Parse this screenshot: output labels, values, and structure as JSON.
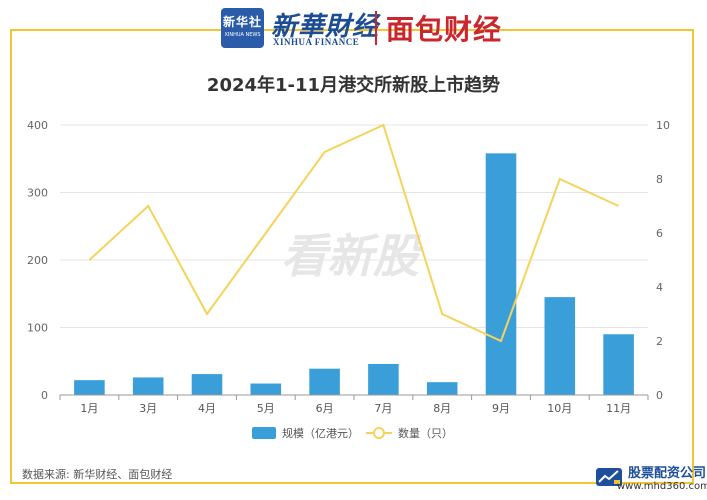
{
  "header": {
    "xinhua_news_cn": "新华社",
    "xinhua_news_en": "XINHUA NEWS",
    "brand_cn": "新華財经",
    "brand_en": "XINHUA FINANCE",
    "mianbao": "面包财经"
  },
  "footer": {
    "source": "数据来源: 新华财经、面包财经",
    "site_name": "股票配资公司",
    "site_url": "www.mhd360.com"
  },
  "watermark": "看新股",
  "colors": {
    "bar": "#3a9fd9",
    "line": "#f5d35a",
    "border": "#f2c531",
    "brand_blue": "#1b4d94",
    "brand_red": "#c9262d"
  },
  "chart_data": {
    "type": "bar",
    "title": "2024年1-11月港交所新股上市趋势",
    "categories": [
      "1月",
      "3月",
      "4月",
      "5月",
      "6月",
      "7月",
      "8月",
      "9月",
      "10月",
      "11月"
    ],
    "series": [
      {
        "name": "规模（亿港元）",
        "type": "bar",
        "axis": "left",
        "values": [
          22,
          26,
          31,
          17,
          39,
          46,
          19,
          358,
          145,
          90
        ]
      },
      {
        "name": "数量（只）",
        "type": "line",
        "axis": "right",
        "values": [
          5,
          7,
          3,
          6,
          9,
          10,
          3,
          2,
          8,
          7
        ]
      }
    ],
    "y_left": {
      "min": 0,
      "max": 400,
      "ticks": [
        0,
        100,
        200,
        300,
        400
      ]
    },
    "y_right": {
      "min": 0,
      "max": 10,
      "ticks": [
        0,
        2,
        4,
        6,
        8,
        10
      ]
    },
    "legend_position": "bottom",
    "grid": true
  }
}
